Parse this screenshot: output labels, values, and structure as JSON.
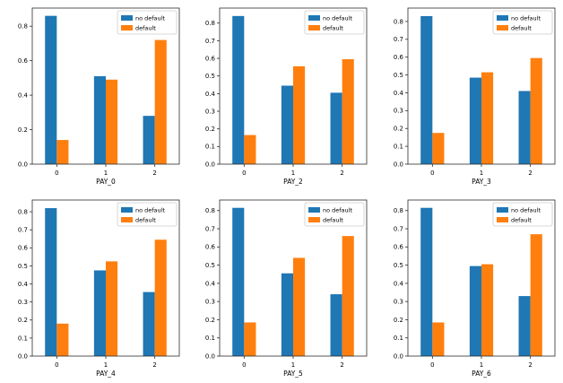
{
  "figure": {
    "background": "#ffffff",
    "spine_color": "#2b2b2b",
    "text_color": "#000000",
    "legend": {
      "entries": [
        {
          "label": "no default",
          "color": "#1f77b4"
        },
        {
          "label": "default",
          "color": "#ff7f0e"
        }
      ],
      "position": "upper right",
      "border_color": "#cccccc",
      "background": "rgba(255,255,255,0.85)"
    }
  },
  "chart_data": [
    {
      "type": "bar",
      "title": "",
      "xlabel": "PAY_0",
      "ylabel": "",
      "categories": [
        "0",
        "1",
        "2"
      ],
      "series": [
        {
          "name": "no default",
          "color": "#1f77b4",
          "values": [
            0.86,
            0.51,
            0.28
          ]
        },
        {
          "name": "default",
          "color": "#ff7f0e",
          "values": [
            0.14,
            0.49,
            0.72
          ]
        }
      ],
      "yticks": [
        0.0,
        0.2,
        0.4,
        0.6,
        0.8
      ],
      "ylim": [
        0,
        0.905
      ],
      "xlim": [
        -0.5,
        2.5
      ],
      "grid": false,
      "legend_position": "upper right"
    },
    {
      "type": "bar",
      "title": "",
      "xlabel": "PAY_2",
      "ylabel": "",
      "categories": [
        "0",
        "1",
        "2"
      ],
      "series": [
        {
          "name": "no default",
          "color": "#1f77b4",
          "values": [
            0.84,
            0.445,
            0.405
          ]
        },
        {
          "name": "default",
          "color": "#ff7f0e",
          "values": [
            0.165,
            0.555,
            0.595
          ]
        }
      ],
      "yticks": [
        0.0,
        0.1,
        0.2,
        0.3,
        0.4,
        0.5,
        0.6,
        0.7,
        0.8
      ],
      "ylim": [
        0,
        0.885
      ],
      "xlim": [
        -0.5,
        2.5
      ],
      "grid": false,
      "legend_position": "upper right"
    },
    {
      "type": "bar",
      "title": "",
      "xlabel": "PAY_3",
      "ylabel": "",
      "categories": [
        "0",
        "1",
        "2"
      ],
      "series": [
        {
          "name": "no default",
          "color": "#1f77b4",
          "values": [
            0.83,
            0.485,
            0.41
          ]
        },
        {
          "name": "default",
          "color": "#ff7f0e",
          "values": [
            0.175,
            0.515,
            0.595
          ]
        }
      ],
      "yticks": [
        0.0,
        0.1,
        0.2,
        0.3,
        0.4,
        0.5,
        0.6,
        0.7,
        0.8
      ],
      "ylim": [
        0,
        0.875
      ],
      "xlim": [
        -0.5,
        2.5
      ],
      "grid": false,
      "legend_position": "upper right"
    },
    {
      "type": "bar",
      "title": "",
      "xlabel": "PAY_4",
      "ylabel": "",
      "categories": [
        "0",
        "1",
        "2"
      ],
      "series": [
        {
          "name": "no default",
          "color": "#1f77b4",
          "values": [
            0.82,
            0.475,
            0.355
          ]
        },
        {
          "name": "default",
          "color": "#ff7f0e",
          "values": [
            0.18,
            0.525,
            0.645
          ]
        }
      ],
      "yticks": [
        0.0,
        0.1,
        0.2,
        0.3,
        0.4,
        0.5,
        0.6,
        0.7,
        0.8
      ],
      "ylim": [
        0,
        0.865
      ],
      "xlim": [
        -0.5,
        2.5
      ],
      "grid": false,
      "legend_position": "upper right"
    },
    {
      "type": "bar",
      "title": "",
      "xlabel": "PAY_5",
      "ylabel": "",
      "categories": [
        "0",
        "1",
        "2"
      ],
      "series": [
        {
          "name": "no default",
          "color": "#1f77b4",
          "values": [
            0.815,
            0.455,
            0.34
          ]
        },
        {
          "name": "default",
          "color": "#ff7f0e",
          "values": [
            0.185,
            0.54,
            0.66
          ]
        }
      ],
      "yticks": [
        0.0,
        0.1,
        0.2,
        0.3,
        0.4,
        0.5,
        0.6,
        0.7,
        0.8
      ],
      "ylim": [
        0,
        0.858
      ],
      "xlim": [
        -0.5,
        2.5
      ],
      "grid": false,
      "legend_position": "upper right"
    },
    {
      "type": "bar",
      "title": "",
      "xlabel": "PAY_6",
      "ylabel": "",
      "categories": [
        "0",
        "1",
        "2"
      ],
      "series": [
        {
          "name": "no default",
          "color": "#1f77b4",
          "values": [
            0.815,
            0.495,
            0.33
          ]
        },
        {
          "name": "default",
          "color": "#ff7f0e",
          "values": [
            0.185,
            0.505,
            0.67
          ]
        }
      ],
      "yticks": [
        0.0,
        0.1,
        0.2,
        0.3,
        0.4,
        0.5,
        0.6,
        0.7,
        0.8
      ],
      "ylim": [
        0,
        0.858
      ],
      "xlim": [
        -0.5,
        2.5
      ],
      "grid": false,
      "legend_position": "upper right"
    }
  ]
}
